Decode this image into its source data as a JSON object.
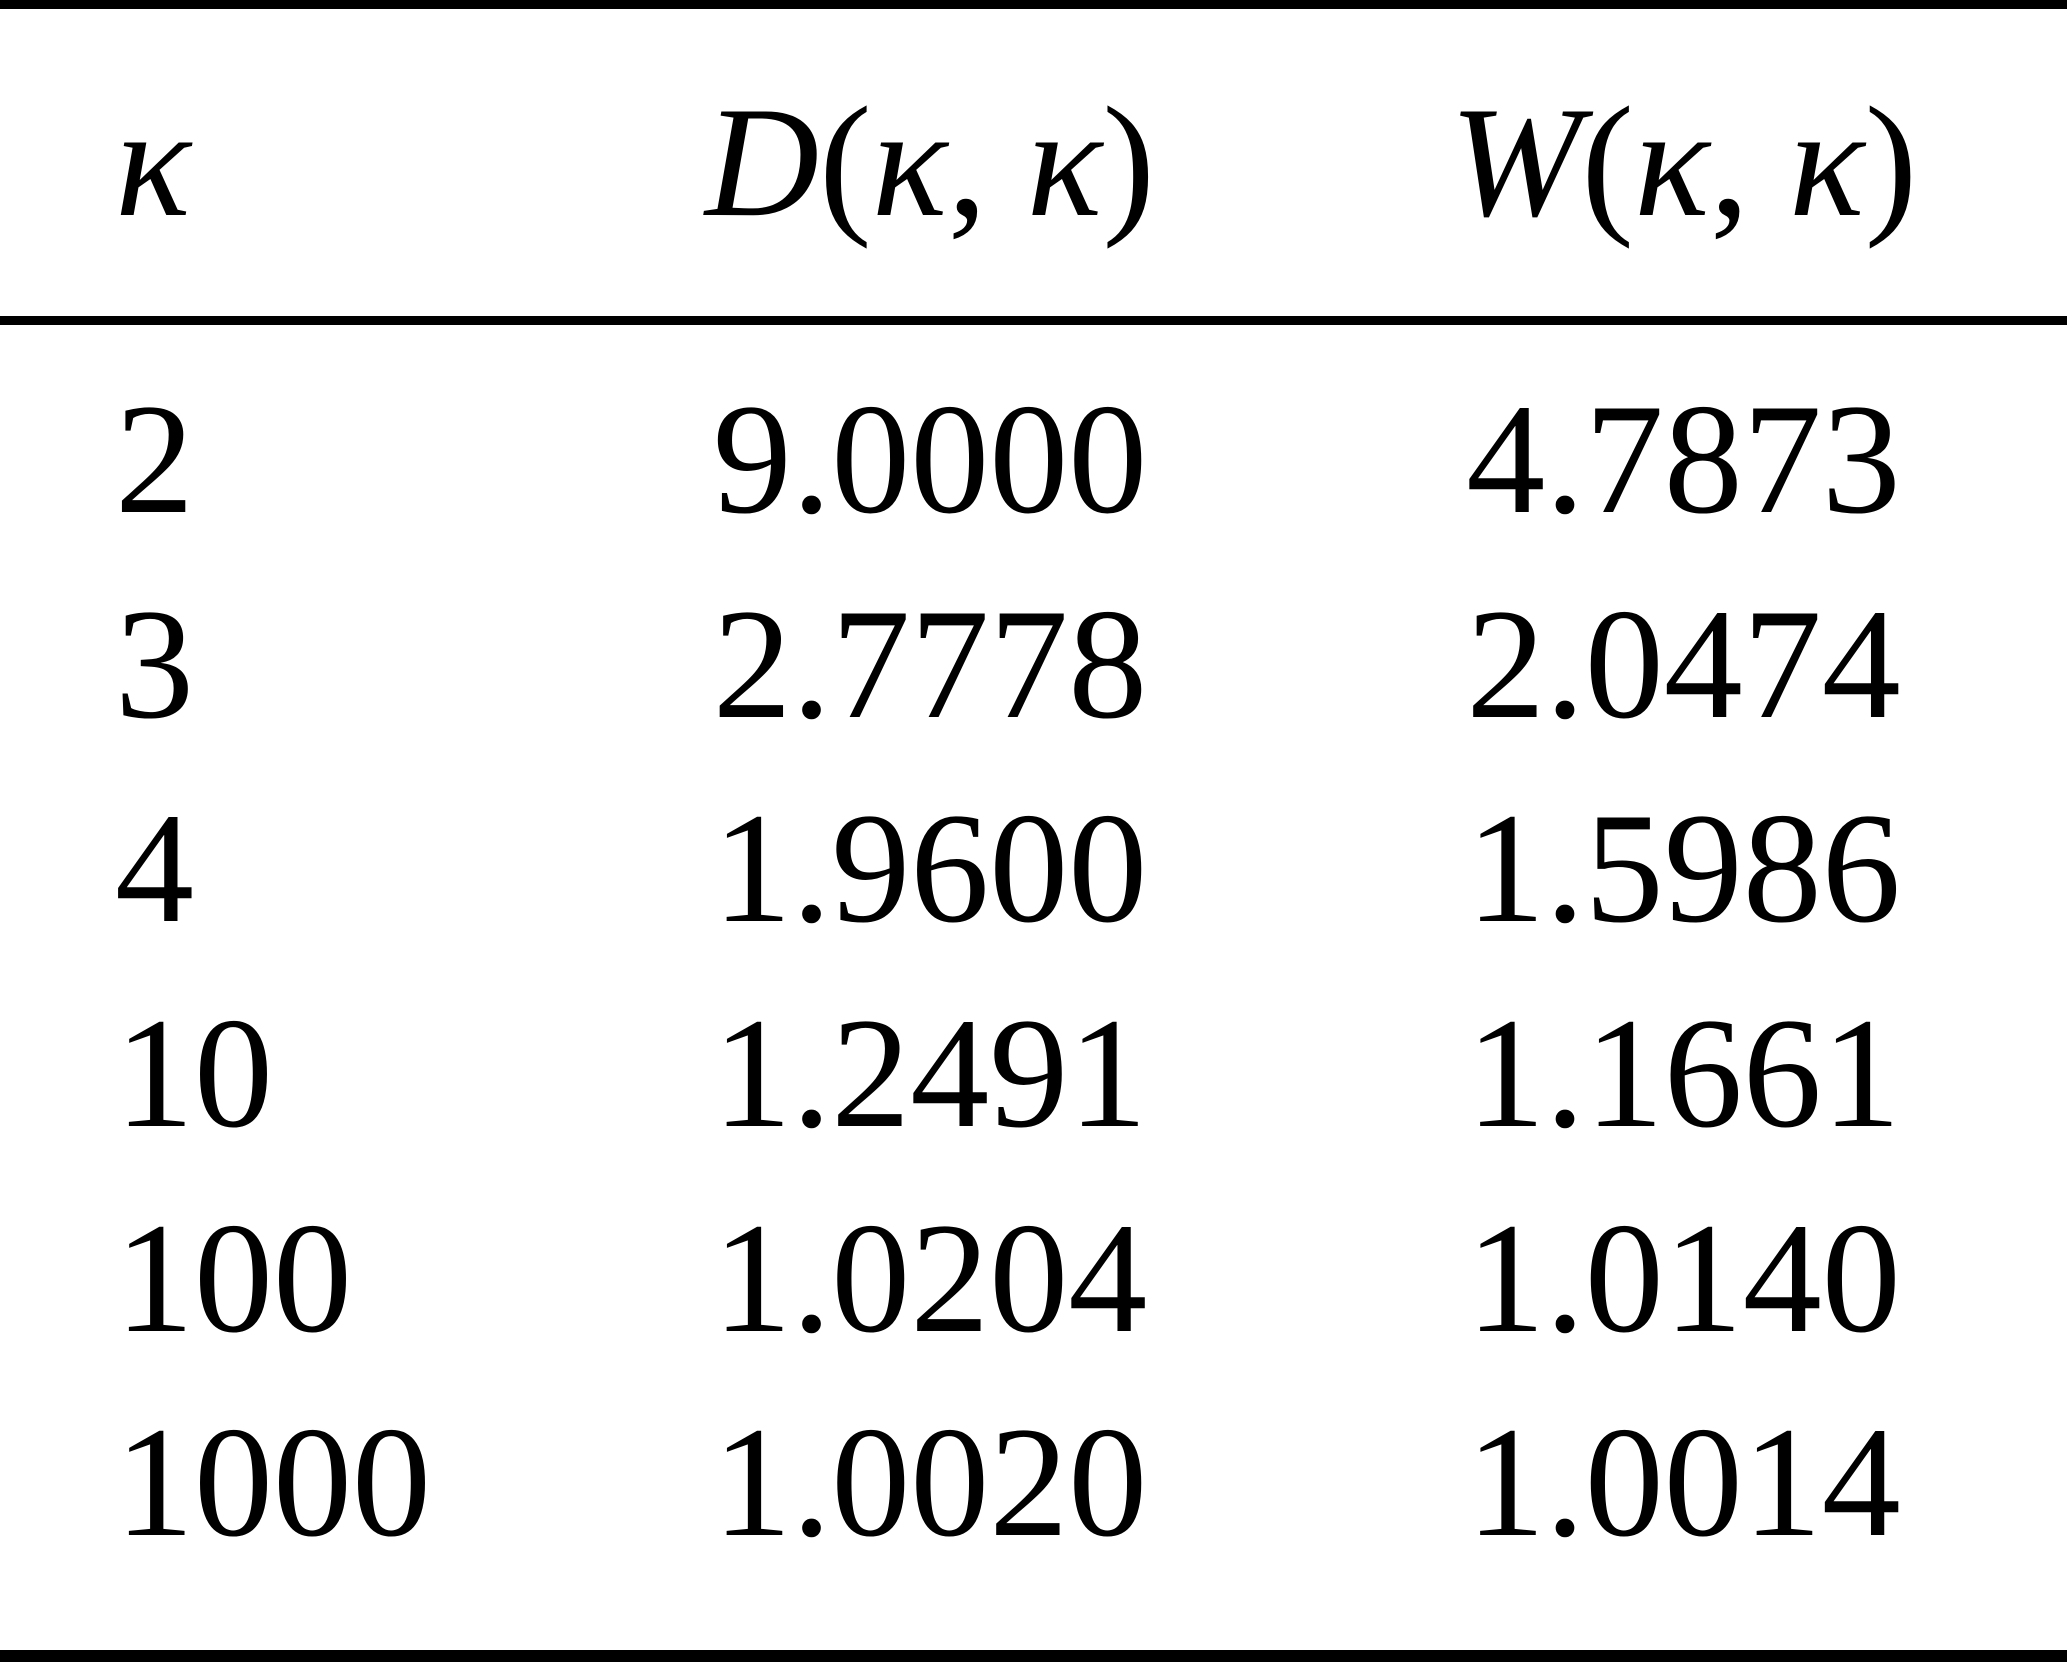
{
  "header": {
    "kappa": "κ",
    "D": {
      "name": "D",
      "open": "(",
      "arg1": "κ",
      "sep": ", ",
      "arg2": "κ",
      "close": ")"
    },
    "W": {
      "name": "W",
      "open": "(",
      "arg1": "κ",
      "sep": ", ",
      "arg2": "κ",
      "close": ")"
    }
  },
  "rows": [
    {
      "kappa": "2",
      "d": "9.0000",
      "w": "4.7873"
    },
    {
      "kappa": "3",
      "d": "2.7778",
      "w": "2.0474"
    },
    {
      "kappa": "4",
      "d": "1.9600",
      "w": "1.5986"
    },
    {
      "kappa": "10",
      "d": "1.2491",
      "w": "1.1661"
    },
    {
      "kappa": "100",
      "d": "1.0204",
      "w": "1.0140"
    },
    {
      "kappa": "1000",
      "d": "1.0020",
      "w": "1.0014"
    }
  ],
  "colors": {
    "text": "#000000",
    "background": "#ffffff",
    "rule": "#000000"
  },
  "chart_data": {
    "type": "table",
    "title": "",
    "columns": [
      "κ",
      "D(κ, κ)",
      "W(κ, κ)"
    ],
    "rows": [
      [
        "2",
        "9.0000",
        "4.7873"
      ],
      [
        "3",
        "2.7778",
        "2.0474"
      ],
      [
        "4",
        "1.9600",
        "1.5986"
      ],
      [
        "10",
        "1.2491",
        "1.1661"
      ],
      [
        "100",
        "1.0204",
        "1.0140"
      ],
      [
        "1000",
        "1.0020",
        "1.0014"
      ]
    ]
  }
}
